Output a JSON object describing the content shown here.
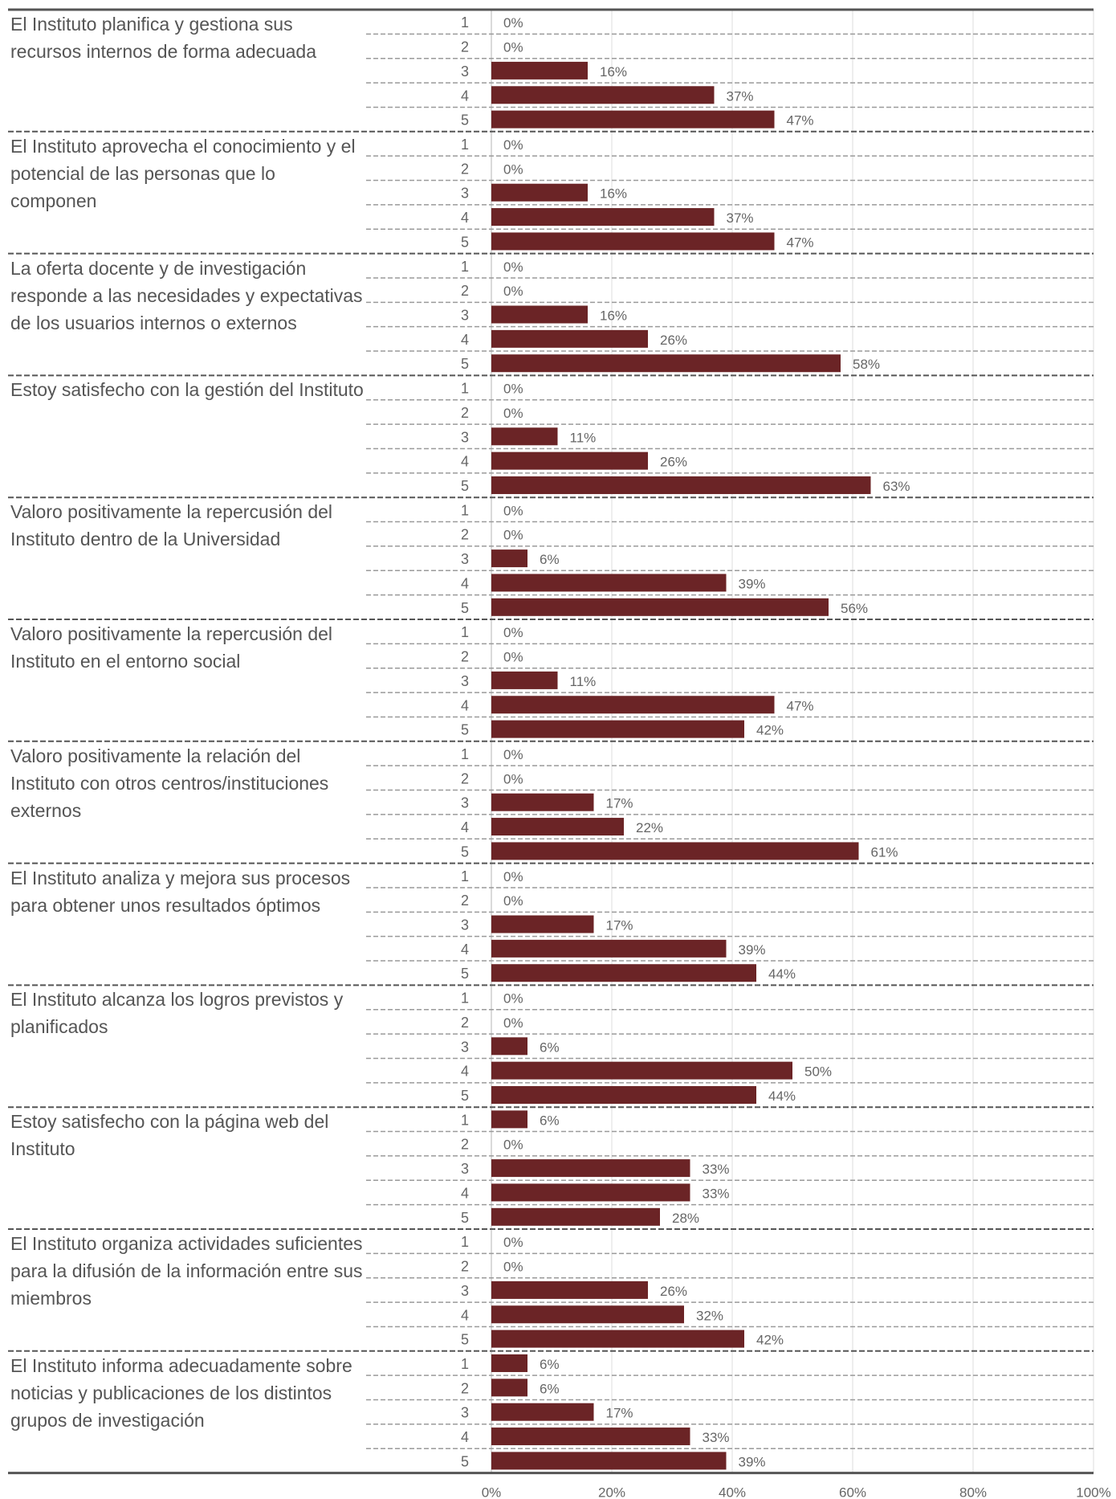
{
  "chart_data": {
    "type": "bar",
    "orientation": "horizontal",
    "xlim": [
      0,
      100
    ],
    "x_ticks": [
      "0%",
      "20%",
      "40%",
      "60%",
      "80%",
      "100%"
    ],
    "grid": true,
    "bar_color": "#6b2426",
    "rating_labels": [
      "1",
      "2",
      "3",
      "4",
      "5"
    ],
    "questions": [
      {
        "text": "El Instituto planifica y gestiona sus recursos internos de forma adecuada",
        "values": [
          0,
          0,
          16,
          37,
          47
        ]
      },
      {
        "text": "El Instituto aprovecha el conocimiento y el potencial de las personas que lo componen",
        "values": [
          0,
          0,
          16,
          37,
          47
        ]
      },
      {
        "text": "La oferta docente y de investigación responde a las necesidades y expectativas de los usuarios internos o externos",
        "values": [
          0,
          0,
          16,
          26,
          58
        ]
      },
      {
        "text": "Estoy satisfecho con la gestión del Instituto",
        "values": [
          0,
          0,
          11,
          26,
          63
        ]
      },
      {
        "text": "Valoro positivamente la repercusión del Instituto dentro de la Universidad",
        "values": [
          0,
          0,
          6,
          39,
          56
        ]
      },
      {
        "text": "Valoro positivamente la repercusión del Instituto en el entorno social",
        "values": [
          0,
          0,
          11,
          47,
          42
        ]
      },
      {
        "text": "Valoro positivamente la relación del Instituto con otros centros/instituciones externos",
        "values": [
          0,
          0,
          17,
          22,
          61
        ]
      },
      {
        "text": "El Instituto analiza y mejora sus procesos para obtener unos resultados óptimos",
        "values": [
          0,
          0,
          17,
          39,
          44
        ]
      },
      {
        "text": "El Instituto alcanza los logros previstos y planificados",
        "values": [
          0,
          0,
          6,
          50,
          44
        ]
      },
      {
        "text": "Estoy satisfecho con la página web del Instituto",
        "values": [
          6,
          0,
          33,
          33,
          28
        ]
      },
      {
        "text": "El Instituto organiza actividades suficientes para la difusión de la información entre sus miembros",
        "values": [
          0,
          0,
          26,
          32,
          42
        ]
      },
      {
        "text": "El Instituto informa adecuadamente sobre noticias y publicaciones de los distintos grupos de investigación",
        "values": [
          6,
          6,
          17,
          33,
          39
        ]
      }
    ]
  }
}
